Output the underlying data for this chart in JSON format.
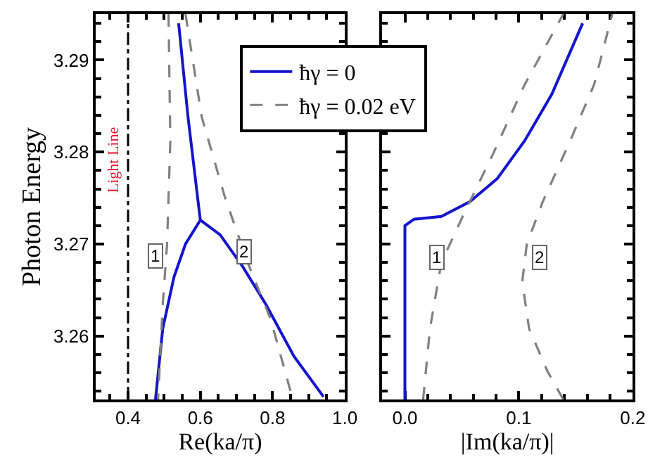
{
  "chart_data": [
    {
      "type": "line",
      "xlabel": "Re(ka/π)",
      "ylabel": "Photon Energy",
      "xlim": [
        0.31,
        1.0
      ],
      "ylim": [
        3.2531,
        3.295
      ],
      "xticks": [
        0.4,
        0.6,
        0.8,
        {
          "value": 1.0,
          "label": "1.0"
        }
      ],
      "yticks": [
        3.26,
        3.27,
        3.28,
        3.29
      ],
      "legend": "top right",
      "series": [
        {
          "name": "ħγ = 0",
          "color": "#1414cc",
          "line_style": "solid",
          "x": [
            0.476,
            0.496,
            0.527,
            0.559,
            0.6,
            0.566,
            0.54
          ],
          "values": [
            3.2531,
            3.2608,
            3.2664,
            3.27,
            3.2726,
            3.2838,
            3.294
          ]
        },
        {
          "color": "#1414cc",
          "line_style": "solid",
          "x": [
            0.6,
            0.655,
            0.718,
            0.782,
            0.859,
            0.941
          ],
          "values": [
            3.2726,
            3.271,
            3.2675,
            3.2634,
            3.2578,
            3.2534
          ]
        },
        {
          "name": "ħγ = 0.02 eV",
          "color": "#808080",
          "line_style": "dashed",
          "x": [
            0.512,
            0.517,
            0.508,
            0.496,
            0.483
          ],
          "values": [
            3.295,
            3.2812,
            3.27,
            3.2634,
            3.2531
          ]
        },
        {
          "color": "#808080",
          "line_style": "dashed",
          "x": [
            0.559,
            0.604,
            0.668,
            0.731,
            0.795,
            0.856
          ],
          "values": [
            3.295,
            3.2838,
            3.2751,
            3.268,
            3.2618,
            3.2531
          ]
        }
      ],
      "ref_lines": [
        {
          "axis": "x",
          "value": 0.4,
          "label": "Light Line",
          "color": "#000000",
          "line_style": "dashdot"
        }
      ],
      "annotations": [
        {
          "text": "1",
          "x": 0.476,
          "y": 3.2687
        },
        {
          "text": "2",
          "x": 0.722,
          "y": 3.2692
        }
      ]
    },
    {
      "type": "line",
      "xlabel": "|Im(ka/π)|",
      "xlim": [
        -0.02,
        0.2
      ],
      "ylim": [
        3.2531,
        3.295
      ],
      "xticks": [
        {
          "value": 0.0,
          "label": "0.0"
        },
        0.1,
        0.2
      ],
      "yticks": [
        3.26,
        3.27,
        3.28,
        3.29
      ],
      "tick_labels": "x",
      "series": [
        {
          "color": "#1414cc",
          "line_style": "solid",
          "x": [
            0,
            0,
            0.008,
            0.032,
            0.057,
            0.081,
            0.105,
            0.129,
            0.156
          ],
          "values": [
            3.2531,
            3.272,
            3.2727,
            3.273,
            3.2746,
            3.2771,
            3.2812,
            3.2863,
            3.294
          ]
        },
        {
          "color": "#808080",
          "line_style": "dashed",
          "x": [
            0.016,
            0.022,
            0.032,
            0.053,
            0.077,
            0.105,
            0.139
          ],
          "values": [
            3.2531,
            3.2608,
            3.268,
            3.2736,
            3.2797,
            3.2873,
            3.295
          ]
        },
        {
          "color": "#808080",
          "line_style": "dashed",
          "x": [
            0.139,
            0.125,
            0.109,
            0.103,
            0.107,
            0.121,
            0.145,
            0.166,
            0.182
          ],
          "values": [
            3.2531,
            3.2562,
            3.2608,
            3.2659,
            3.27,
            3.2746,
            3.2812,
            3.2873,
            3.295
          ]
        }
      ],
      "annotations": [
        {
          "text": "1",
          "x": 0.028,
          "y": 3.2685
        },
        {
          "text": "2",
          "x": 0.118,
          "y": 3.2685
        }
      ]
    }
  ]
}
